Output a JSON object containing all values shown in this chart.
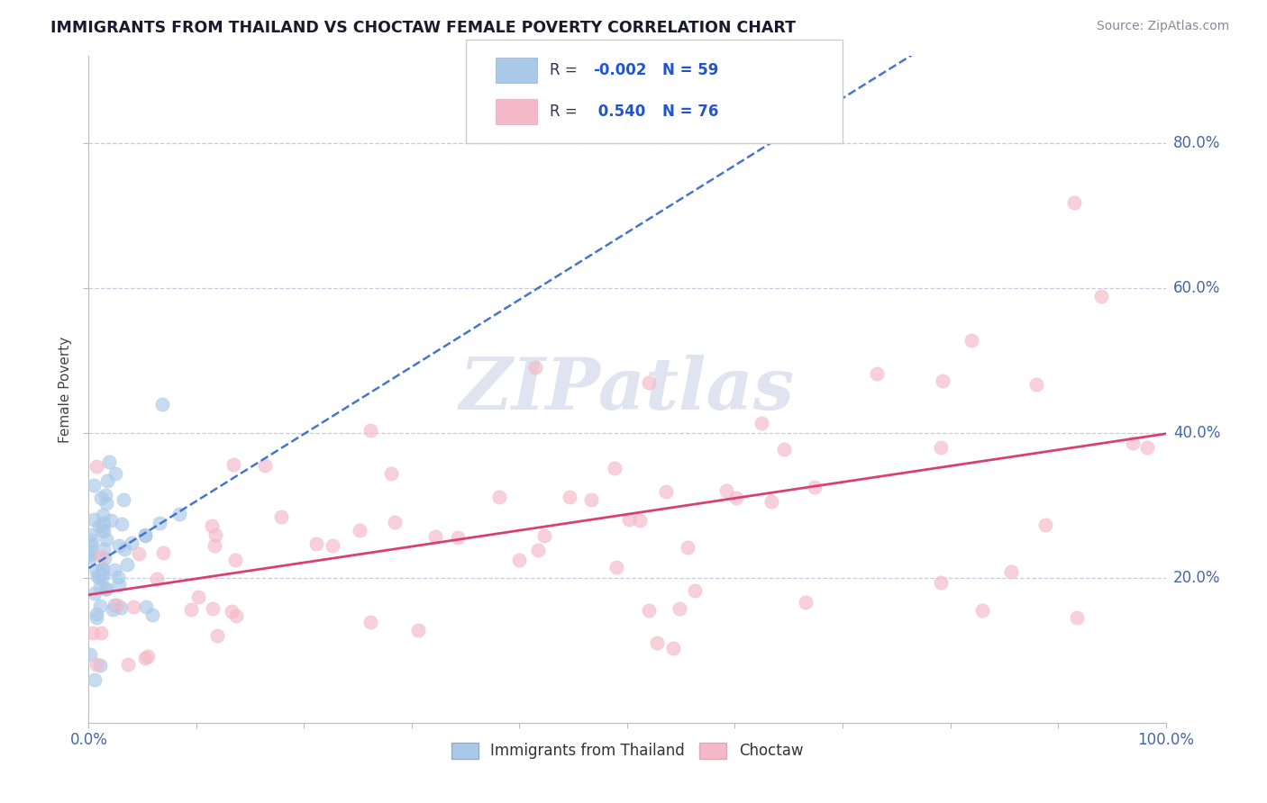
{
  "title": "IMMIGRANTS FROM THAILAND VS CHOCTAW FEMALE POVERTY CORRELATION CHART",
  "source": "Source: ZipAtlas.com",
  "ylabel": "Female Poverty",
  "legend_labels": [
    "Immigrants from Thailand",
    "Choctaw"
  ],
  "r_values": [
    -0.002,
    0.54
  ],
  "n_values": [
    59,
    76
  ],
  "y_tick_labels": [
    "20.0%",
    "40.0%",
    "60.0%",
    "80.0%"
  ],
  "y_tick_values": [
    0.2,
    0.4,
    0.6,
    0.8
  ],
  "color_thailand": "#aac9e8",
  "color_choctaw": "#f5b8c8",
  "line_color_thailand": "#4477cc",
  "line_color_choctaw": "#d94070",
  "background_color": "#ffffff",
  "watermark_color": "#e0e4f0",
  "xlim": [
    0.0,
    1.0
  ],
  "ylim": [
    0.0,
    0.92
  ]
}
